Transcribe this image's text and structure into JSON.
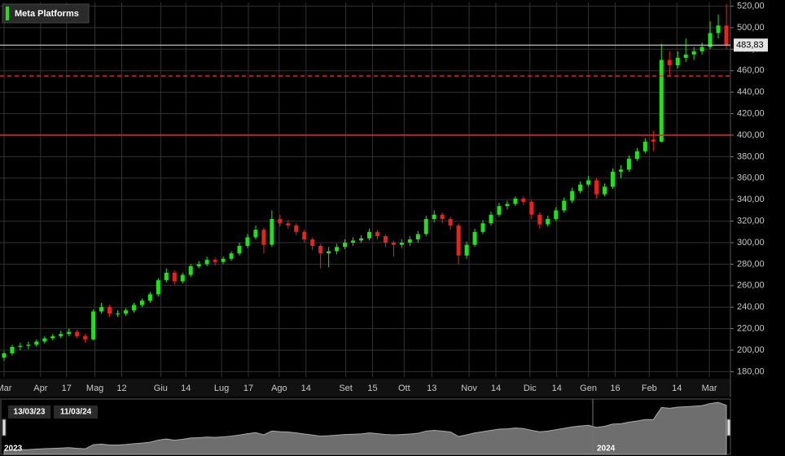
{
  "chart_data": {
    "type": "candlestick",
    "title": "Meta Platforms",
    "up_color": "#22e01e",
    "down_color": "#e8231e",
    "open": [
      193,
      197,
      203,
      204,
      205,
      208,
      211,
      213,
      215,
      217,
      213,
      210,
      236,
      240,
      234,
      234,
      237,
      242,
      246,
      252,
      265,
      272,
      264,
      270,
      278,
      280,
      284,
      282,
      285,
      290,
      297,
      305,
      312,
      298,
      322,
      318,
      316,
      310,
      303,
      297,
      290,
      292,
      296,
      300,
      302,
      304,
      310,
      306,
      300,
      298,
      300,
      303,
      308,
      322,
      326,
      322,
      316,
      288,
      298,
      310,
      318,
      326,
      334,
      336,
      341,
      338,
      326,
      317,
      322,
      330,
      339,
      348,
      354,
      358,
      345,
      352,
      366,
      368,
      378,
      385,
      396,
      394,
      470,
      465,
      472,
      475,
      478,
      482,
      495,
      502
    ],
    "high": [
      199,
      205,
      207,
      208,
      210,
      213,
      215,
      218,
      220,
      219,
      215,
      238,
      244,
      242,
      237,
      239,
      244,
      248,
      254,
      267,
      276,
      274,
      272,
      280,
      283,
      287,
      286,
      287,
      292,
      300,
      308,
      316,
      314,
      330,
      326,
      321,
      318,
      312,
      305,
      299,
      296,
      299,
      303,
      305,
      307,
      313,
      312,
      308,
      302,
      303,
      306,
      311,
      325,
      330,
      328,
      324,
      318,
      301,
      313,
      321,
      329,
      337,
      339,
      343,
      343,
      340,
      328,
      325,
      333,
      342,
      351,
      357,
      362,
      360,
      355,
      369,
      372,
      381,
      388,
      397,
      404,
      485,
      478,
      478,
      490,
      482,
      486,
      506,
      512,
      522
    ],
    "low": [
      190,
      195,
      200,
      201,
      203,
      206,
      209,
      211,
      213,
      211,
      207,
      209,
      234,
      231,
      231,
      232,
      235,
      240,
      244,
      250,
      263,
      261,
      262,
      268,
      276,
      278,
      279,
      280,
      283,
      288,
      295,
      303,
      290,
      296,
      315,
      313,
      307,
      300,
      293,
      276,
      277,
      289,
      294,
      297,
      300,
      302,
      303,
      296,
      287,
      295,
      297,
      300,
      306,
      319,
      318,
      312,
      280,
      285,
      296,
      308,
      316,
      324,
      331,
      334,
      335,
      322,
      313,
      315,
      320,
      328,
      337,
      346,
      352,
      341,
      343,
      350,
      360,
      366,
      376,
      383,
      385,
      393,
      455,
      462,
      468,
      470,
      475,
      480,
      490,
      480
    ],
    "close": [
      197,
      203,
      204,
      205,
      208,
      211,
      213,
      215,
      217,
      213,
      210,
      236,
      240,
      234,
      234,
      237,
      242,
      246,
      252,
      265,
      272,
      264,
      270,
      278,
      280,
      284,
      282,
      285,
      290,
      297,
      305,
      312,
      298,
      322,
      318,
      316,
      310,
      303,
      297,
      290,
      292,
      296,
      300,
      302,
      304,
      310,
      306,
      300,
      298,
      300,
      303,
      308,
      322,
      326,
      322,
      316,
      288,
      298,
      310,
      318,
      326,
      334,
      336,
      341,
      338,
      326,
      317,
      322,
      330,
      339,
      348,
      354,
      358,
      345,
      352,
      366,
      368,
      378,
      385,
      394,
      394,
      470,
      465,
      472,
      475,
      478,
      482,
      495,
      502,
      484
    ],
    "ylim": [
      175,
      523.5
    ],
    "yticks": [
      {
        "value": 180,
        "label": "180,00"
      },
      {
        "value": 200,
        "label": "200,00"
      },
      {
        "value": 220,
        "label": "220,00"
      },
      {
        "value": 240,
        "label": "240,00"
      },
      {
        "value": 260,
        "label": "260,00"
      },
      {
        "value": 280,
        "label": "280,00"
      },
      {
        "value": 300,
        "label": "300,00"
      },
      {
        "value": 320,
        "label": "320,00"
      },
      {
        "value": 340,
        "label": "340,00"
      },
      {
        "value": 360,
        "label": "360,00"
      },
      {
        "value": 380,
        "label": "380,00"
      },
      {
        "value": 400,
        "label": "400,00"
      },
      {
        "value": 420,
        "label": "420,00"
      },
      {
        "value": 440,
        "label": "440,00"
      },
      {
        "value": 460,
        "label": "460,00"
      },
      {
        "value": 480,
        "label": "480,00"
      },
      {
        "value": 500,
        "label": "500,00"
      },
      {
        "value": 520,
        "label": "520,00"
      }
    ],
    "xticks": [
      {
        "value": 0.5,
        "label": "Mar"
      },
      {
        "value": 5,
        "label": "Apr"
      },
      {
        "value": 8.2,
        "label": "17"
      },
      {
        "value": 11.7,
        "label": "Mag"
      },
      {
        "value": 15,
        "label": "12"
      },
      {
        "value": 19.8,
        "label": "Giu"
      },
      {
        "value": 22.9,
        "label": "14"
      },
      {
        "value": 27.3,
        "label": "Lug"
      },
      {
        "value": 30.6,
        "label": "17"
      },
      {
        "value": 34.4,
        "label": "Ago"
      },
      {
        "value": 37.7,
        "label": "14"
      },
      {
        "value": 42.6,
        "label": "Set"
      },
      {
        "value": 45.9,
        "label": "15"
      },
      {
        "value": 49.8,
        "label": "Ott"
      },
      {
        "value": 53.2,
        "label": "13"
      },
      {
        "value": 57.8,
        "label": "Nov"
      },
      {
        "value": 61.1,
        "label": "14"
      },
      {
        "value": 65.3,
        "label": "Dic"
      },
      {
        "value": 68.6,
        "label": "14"
      },
      {
        "value": 72.5,
        "label": "Gen"
      },
      {
        "value": 75.8,
        "label": "16"
      },
      {
        "value": 80,
        "label": "Feb"
      },
      {
        "value": 83.4,
        "label": "14"
      },
      {
        "value": 87.4,
        "label": "Mar"
      }
    ],
    "grid": true,
    "price_line": {
      "value": 483.83,
      "label": "483,83",
      "color": "#e6e6e6"
    },
    "levels": [
      {
        "value": 455,
        "color": "#ff2020",
        "style": "dashed"
      },
      {
        "value": 400,
        "color": "#ff2020",
        "style": "solid"
      }
    ],
    "navigator": {
      "start": "13/03/23",
      "end": "11/03/24",
      "years": [
        "2023",
        "2024"
      ]
    }
  }
}
